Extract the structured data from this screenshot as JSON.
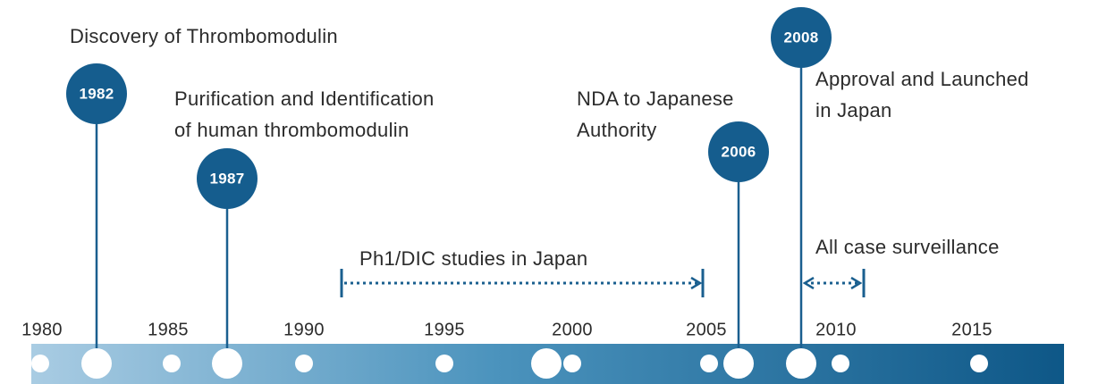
{
  "timeline": {
    "axis_labels": [
      "1980",
      "1985",
      "1990",
      "1995",
      "2000",
      "2005",
      "2010",
      "2015"
    ],
    "milestones": [
      {
        "year": "1982",
        "label": [
          "Discovery of Thrombomodulin"
        ]
      },
      {
        "year": "1987",
        "label": [
          "Purification and Identification",
          "of human thrombomodulin"
        ]
      },
      {
        "year": "2006",
        "label": [
          "NDA to Japanese",
          "Authority"
        ]
      },
      {
        "year": "2008",
        "label": [
          "Approval and Launched",
          "in Japan"
        ]
      }
    ],
    "periods": [
      {
        "label": "Ph1/DIC studies in Japan"
      },
      {
        "label": "All case surveillance"
      }
    ]
  }
}
